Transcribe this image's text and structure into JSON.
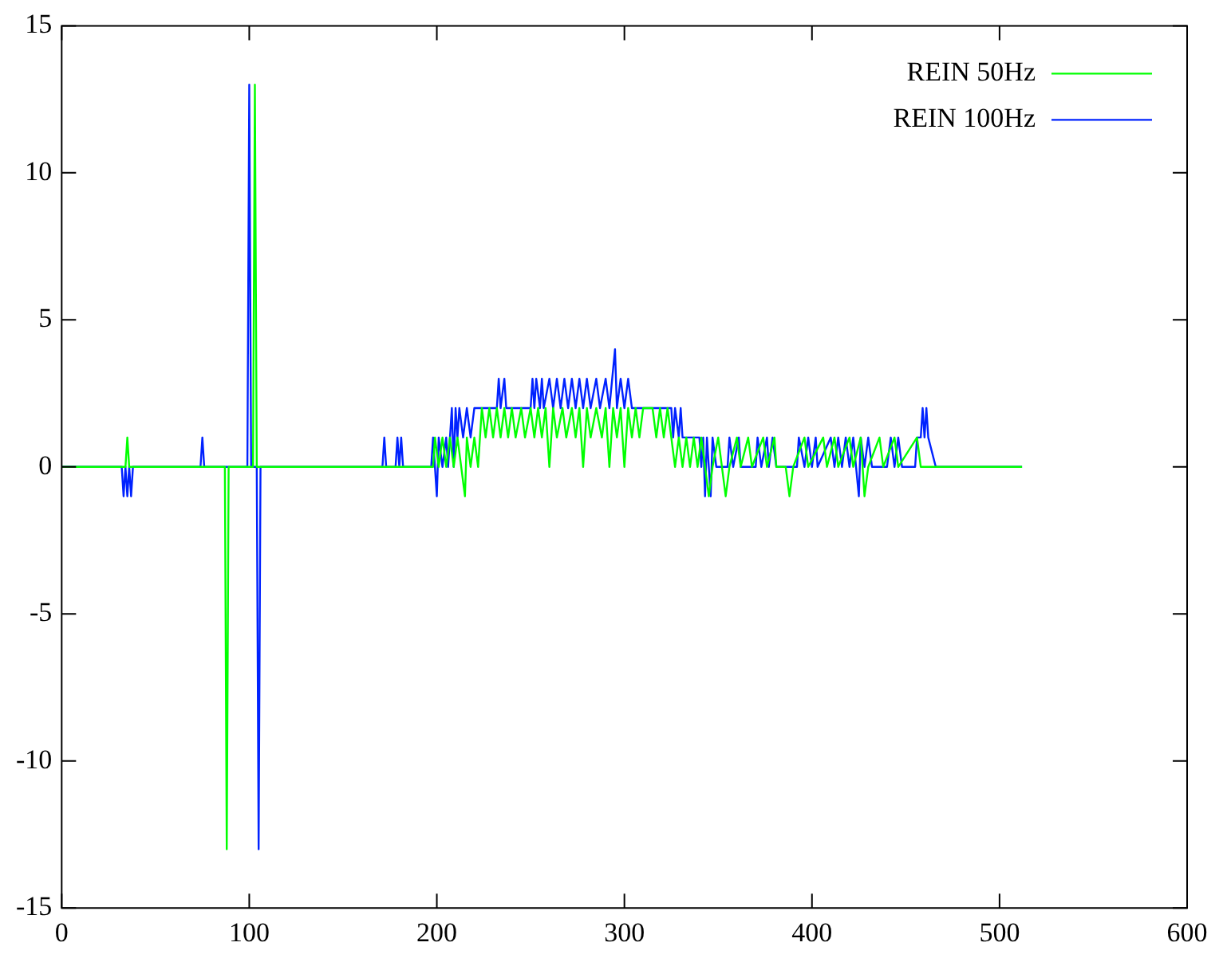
{
  "chart_data": {
    "type": "line",
    "xlim": [
      0,
      600
    ],
    "xticks": [
      0,
      100,
      200,
      300,
      400,
      500,
      600
    ],
    "ylim": [
      -15,
      15
    ],
    "yticks": [
      -15,
      -10,
      -5,
      0,
      5,
      10,
      15
    ],
    "legend": "top right",
    "series": [
      {
        "name": "REIN 50Hz",
        "color": "#00ff00",
        "x": [
          0,
          34,
          35,
          36,
          87,
          88,
          89,
          102,
          103,
          104,
          198,
          199,
          201,
          203,
          205,
          207,
          209,
          211,
          213,
          215,
          216,
          218,
          220,
          222,
          224,
          226,
          228,
          230,
          232,
          234,
          236,
          238,
          240,
          242,
          245,
          247,
          250,
          252,
          254,
          256,
          258,
          260,
          262,
          264,
          267,
          269,
          272,
          274,
          276,
          278,
          280,
          282,
          285,
          288,
          290,
          292,
          294,
          296,
          298,
          300,
          302,
          304,
          306,
          308,
          310,
          315,
          317,
          319,
          321,
          323,
          325,
          327,
          329,
          331,
          333,
          335,
          337,
          339,
          341,
          343,
          345,
          347,
          350,
          352,
          354,
          356,
          360,
          362,
          366,
          368,
          374,
          376,
          380,
          381,
          386,
          388,
          390,
          396,
          398,
          406,
          408,
          412,
          414,
          420,
          422,
          426,
          428,
          430,
          436,
          438,
          444,
          446,
          456,
          458,
          512
        ],
        "values": [
          0,
          0,
          1,
          0,
          0,
          -13,
          0,
          0,
          13,
          0,
          0,
          1,
          0,
          1,
          0,
          1,
          0,
          1,
          0,
          -1,
          1,
          0,
          1,
          0,
          2,
          1,
          2,
          1,
          2,
          1,
          2,
          1,
          2,
          1,
          2,
          1,
          2,
          1,
          2,
          1,
          2,
          0,
          2,
          1,
          2,
          1,
          2,
          1,
          2,
          0,
          2,
          1,
          2,
          1,
          2,
          0,
          2,
          1,
          2,
          0,
          2,
          1,
          2,
          1,
          2,
          2,
          1,
          2,
          1,
          2,
          1,
          0,
          1,
          0,
          1,
          0,
          1,
          0,
          1,
          0,
          -1,
          0,
          1,
          0,
          -1,
          0,
          1,
          0,
          1,
          0,
          1,
          0,
          1,
          0,
          0,
          -1,
          0,
          1,
          0,
          1,
          0,
          1,
          0,
          1,
          0,
          1,
          -1,
          0,
          1,
          0,
          1,
          0,
          1,
          0,
          0
        ]
      },
      {
        "name": "REIN 100Hz",
        "color": "#0022ff",
        "x": [
          0,
          32,
          33,
          34,
          35,
          36,
          37,
          38,
          74,
          75,
          76,
          99,
          100,
          101,
          104,
          105,
          106,
          171,
          172,
          173,
          178,
          179,
          180,
          181,
          182,
          197,
          198,
          199,
          200,
          201,
          203,
          205,
          206,
          208,
          209,
          210,
          211,
          212,
          214,
          216,
          218,
          220,
          225,
          232,
          233,
          234,
          236,
          237,
          250,
          251,
          252,
          253,
          255,
          256,
          257,
          260,
          262,
          264,
          266,
          268,
          270,
          272,
          274,
          276,
          278,
          280,
          282,
          285,
          287,
          290,
          292,
          295,
          296,
          298,
          300,
          302,
          304,
          325,
          326,
          327,
          329,
          330,
          331,
          340,
          341,
          342,
          343,
          344,
          346,
          347,
          349,
          355,
          356,
          358,
          361,
          362,
          370,
          371,
          373,
          376,
          377,
          379,
          381,
          392,
          393,
          396,
          398,
          400,
          402,
          403,
          410,
          412,
          414,
          416,
          418,
          420,
          422,
          425,
          426,
          428,
          430,
          432,
          440,
          442,
          444,
          446,
          448,
          455,
          456,
          458,
          459,
          460,
          461,
          462,
          466,
          512
        ],
        "values": [
          0,
          0,
          -1,
          0,
          -1,
          0,
          -1,
          0,
          0,
          1,
          0,
          0,
          13,
          0,
          0,
          -13,
          0,
          0,
          1,
          0,
          0,
          1,
          0,
          1,
          0,
          0,
          1,
          0,
          -1,
          1,
          0,
          1,
          0,
          2,
          0,
          2,
          1,
          2,
          1,
          2,
          1,
          2,
          2,
          2,
          3,
          2,
          3,
          2,
          2,
          3,
          2,
          3,
          2,
          3,
          2,
          3,
          2,
          3,
          2,
          3,
          2,
          3,
          2,
          3,
          2,
          3,
          2,
          3,
          2,
          3,
          2,
          4,
          2,
          3,
          2,
          3,
          2,
          2,
          1,
          2,
          1,
          2,
          1,
          1,
          0,
          1,
          -1,
          1,
          -1,
          1,
          0,
          0,
          1,
          0,
          1,
          0,
          0,
          1,
          0,
          1,
          0,
          1,
          0,
          0,
          1,
          0,
          1,
          0,
          1,
          0,
          1,
          0,
          1,
          0,
          1,
          0,
          1,
          -1,
          1,
          0,
          1,
          0,
          0,
          1,
          0,
          1,
          0,
          0,
          1,
          1,
          2,
          1,
          2,
          1,
          0,
          0
        ]
      }
    ]
  }
}
